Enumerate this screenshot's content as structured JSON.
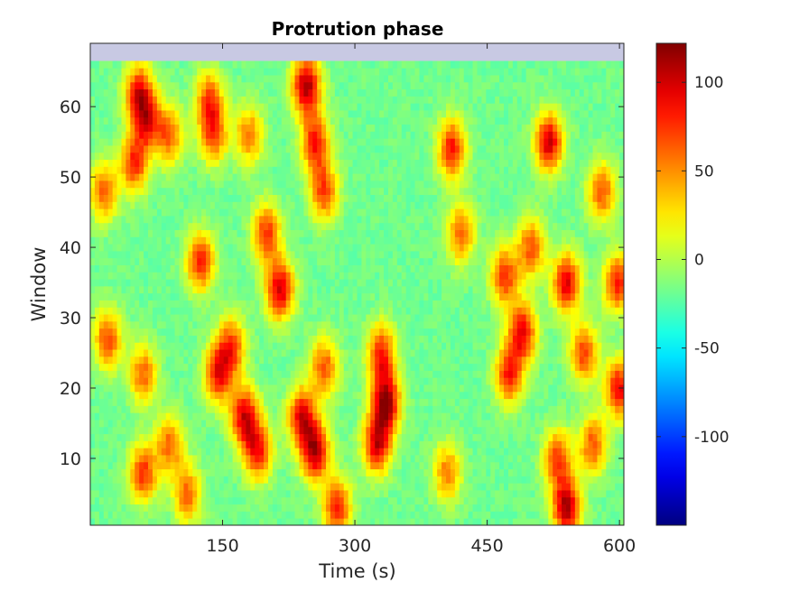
{
  "chart_data": {
    "type": "heatmap",
    "title": "Protrution phase",
    "xlabel": "Time (s)",
    "ylabel": "Window",
    "xlim": [
      0,
      605
    ],
    "ylim": [
      0.5,
      69
    ],
    "xticks": [
      150,
      300,
      450,
      600
    ],
    "yticks": [
      10,
      20,
      30,
      40,
      50,
      60
    ],
    "clim": [
      -150,
      122
    ],
    "colorbar_ticks": [
      100,
      50,
      0,
      -50,
      -100
    ],
    "colormap": "jet",
    "grid": false,
    "colors": {
      "background": "#ffffff",
      "missing_rows": "#c8c9e3",
      "axis": "#262626"
    },
    "rows": 66,
    "cols": 120,
    "value_range_observed": [
      -30,
      120
    ],
    "hotspots": [
      {
        "x": 55,
        "y": 62,
        "value": 80
      },
      {
        "x": 65,
        "y": 58,
        "value": 70
      },
      {
        "x": 50,
        "y": 52,
        "value": 75
      },
      {
        "x": 90,
        "y": 56,
        "value": 60
      },
      {
        "x": 135,
        "y": 61,
        "value": 65
      },
      {
        "x": 140,
        "y": 56,
        "value": 60
      },
      {
        "x": 180,
        "y": 56,
        "value": 55
      },
      {
        "x": 245,
        "y": 63,
        "value": 110
      },
      {
        "x": 255,
        "y": 55,
        "value": 80
      },
      {
        "x": 265,
        "y": 48,
        "value": 70
      },
      {
        "x": 15,
        "y": 48,
        "value": 60
      },
      {
        "x": 125,
        "y": 38,
        "value": 80
      },
      {
        "x": 200,
        "y": 42,
        "value": 75
      },
      {
        "x": 215,
        "y": 34,
        "value": 100
      },
      {
        "x": 410,
        "y": 54,
        "value": 85
      },
      {
        "x": 420,
        "y": 42,
        "value": 60
      },
      {
        "x": 520,
        "y": 55,
        "value": 100
      },
      {
        "x": 580,
        "y": 48,
        "value": 65
      },
      {
        "x": 470,
        "y": 36,
        "value": 75
      },
      {
        "x": 490,
        "y": 28,
        "value": 90
      },
      {
        "x": 475,
        "y": 22,
        "value": 80
      },
      {
        "x": 500,
        "y": 40,
        "value": 65
      },
      {
        "x": 540,
        "y": 35,
        "value": 95
      },
      {
        "x": 560,
        "y": 25,
        "value": 70
      },
      {
        "x": 20,
        "y": 27,
        "value": 70
      },
      {
        "x": 60,
        "y": 22,
        "value": 60
      },
      {
        "x": 145,
        "y": 22,
        "value": 80
      },
      {
        "x": 160,
        "y": 26,
        "value": 70
      },
      {
        "x": 175,
        "y": 16,
        "value": 95
      },
      {
        "x": 190,
        "y": 11,
        "value": 80
      },
      {
        "x": 240,
        "y": 16,
        "value": 90
      },
      {
        "x": 255,
        "y": 11,
        "value": 105
      },
      {
        "x": 265,
        "y": 23,
        "value": 65
      },
      {
        "x": 335,
        "y": 18,
        "value": 115
      },
      {
        "x": 325,
        "y": 12,
        "value": 95
      },
      {
        "x": 330,
        "y": 25,
        "value": 80
      },
      {
        "x": 60,
        "y": 8,
        "value": 75
      },
      {
        "x": 90,
        "y": 12,
        "value": 60
      },
      {
        "x": 110,
        "y": 5,
        "value": 60
      },
      {
        "x": 280,
        "y": 3,
        "value": 80
      },
      {
        "x": 405,
        "y": 8,
        "value": 55
      },
      {
        "x": 540,
        "y": 3,
        "value": 110
      },
      {
        "x": 530,
        "y": 10,
        "value": 70
      },
      {
        "x": 570,
        "y": 12,
        "value": 65
      },
      {
        "x": 600,
        "y": 20,
        "value": 90
      },
      {
        "x": 598,
        "y": 35,
        "value": 80
      }
    ]
  }
}
